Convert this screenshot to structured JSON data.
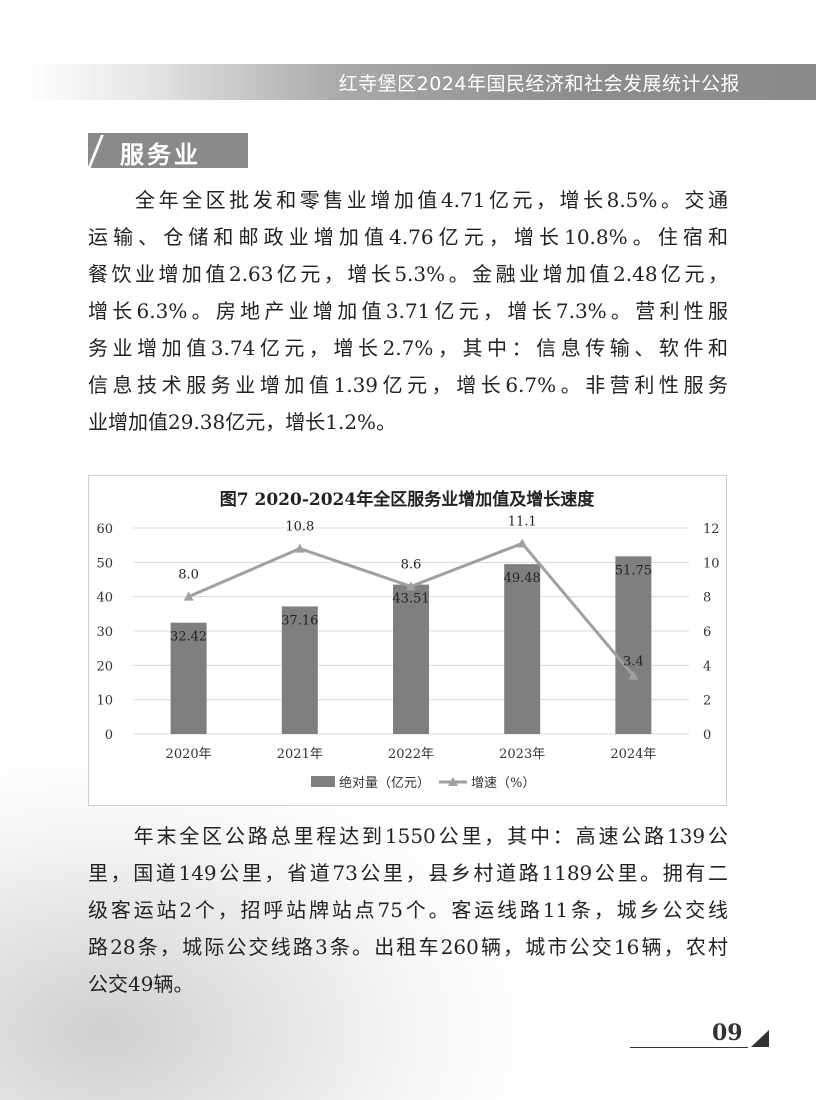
{
  "header": {
    "title": "红寺堡区2024年国民经济和社会发展统计公报"
  },
  "section": {
    "title": "服务业"
  },
  "paragraph1": {
    "lines": [
      "　　全年全区批发和零售业增加值4.71亿元，增长8.5%。交通",
      "运输、仓储和邮政业增加值4.76亿元，增长10.8%。住宿和",
      "餐饮业增加值2.63亿元，增长5.3%。金融业增加值2.48亿元，",
      "增长6.3%。房地产业增加值3.71亿元，增长7.3%。营利性服",
      "务业增加值3.74亿元，增长2.7%，其中：信息传输、软件和",
      "信息技术服务业增加值1.39亿元，增长6.7%。非营利性服务",
      "业增加值29.38亿元，增长1.2%。"
    ]
  },
  "paragraph2": {
    "lines": [
      "　　年末全区公路总里程达到1550公里，其中：高速公路139公",
      "里，国道149公里，省道73公里，县乡村道路1189公里。拥有二",
      "级客运站2个，招呼站牌站点75个。客运线路11条，城乡公交线",
      "路28条，城际公交线路3条。出租车260辆，城市公交16辆，农村",
      "公交49辆。"
    ]
  },
  "chart_data": {
    "type": "bar+line",
    "title": "图7  2020-2024年全区服务业增加值及增长速度",
    "categories": [
      "2020年",
      "2021年",
      "2022年",
      "2023年",
      "2024年"
    ],
    "series": [
      {
        "name": "绝对量（亿元）",
        "type": "bar",
        "axis": "left",
        "values": [
          32.42,
          37.16,
          43.51,
          49.48,
          51.75
        ],
        "labels": [
          "32.42",
          "37.16",
          "43.51",
          "49.48",
          "51.75"
        ],
        "color": "#7f7f7f"
      },
      {
        "name": "增速（%）",
        "type": "line",
        "axis": "right",
        "values": [
          8.0,
          10.8,
          8.6,
          11.1,
          3.4
        ],
        "labels": [
          "8.0",
          "10.8",
          "8.6",
          "11.1",
          "3.4"
        ],
        "color": "#a0a0a0"
      }
    ],
    "y_left": {
      "ylim": [
        0,
        60
      ],
      "ticks": [
        "0",
        "10",
        "20",
        "30",
        "40",
        "50",
        "60"
      ]
    },
    "y_right": {
      "ylim": [
        0,
        12
      ],
      "ticks": [
        "0",
        "2",
        "4",
        "6",
        "8",
        "10",
        "12"
      ]
    },
    "grid": true,
    "legend": "bottom"
  },
  "footer": {
    "page_number": "09"
  }
}
